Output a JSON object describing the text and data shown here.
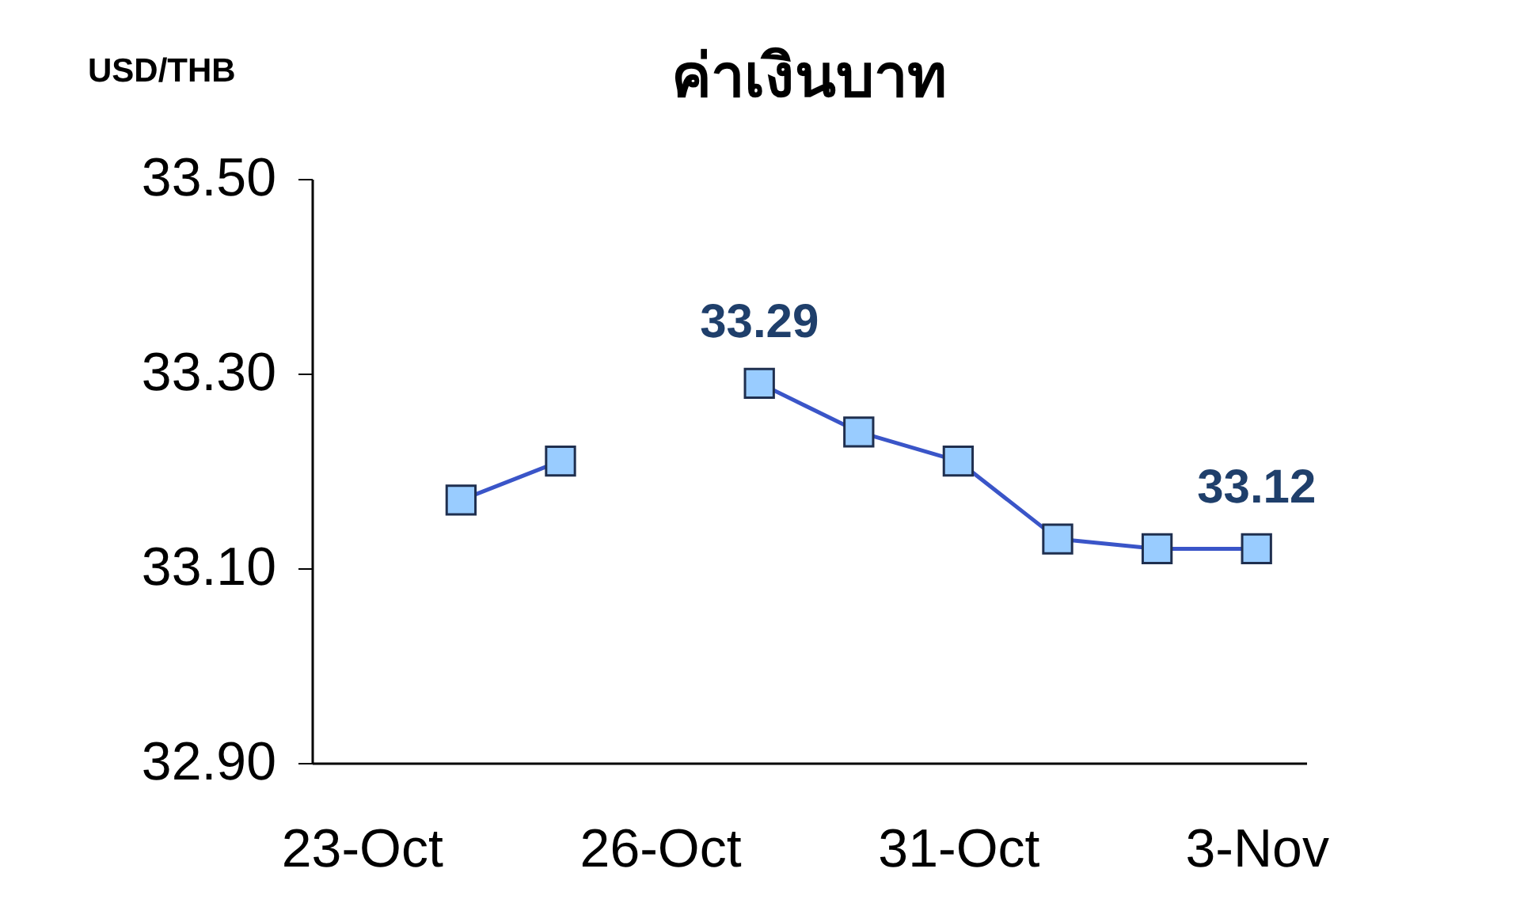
{
  "chart_data": {
    "type": "line",
    "title": "ค่าเงินบาท",
    "ylabel": "USD/THB",
    "categories": [
      "23-Oct",
      null,
      null,
      "26-Oct",
      null,
      null,
      "31-Oct",
      null,
      null,
      "3-Nov"
    ],
    "series": [
      {
        "color": "#3a55c8",
        "values": [
          null,
          33.17,
          33.21,
          null,
          33.29,
          33.24,
          33.21,
          33.13,
          33.12,
          33.12
        ],
        "value_labels": [
          null,
          null,
          null,
          null,
          "33.29",
          null,
          null,
          null,
          null,
          "33.12"
        ]
      }
    ],
    "ylim": [
      32.9,
      33.5
    ],
    "yticks": [
      {
        "value": 32.9,
        "label": "32.90"
      },
      {
        "value": 33.1,
        "label": "33.10"
      },
      {
        "value": 33.3,
        "label": "33.30"
      },
      {
        "value": 33.5,
        "label": "33.50"
      }
    ],
    "grid": false,
    "marker": "square",
    "line_style": "solid"
  }
}
